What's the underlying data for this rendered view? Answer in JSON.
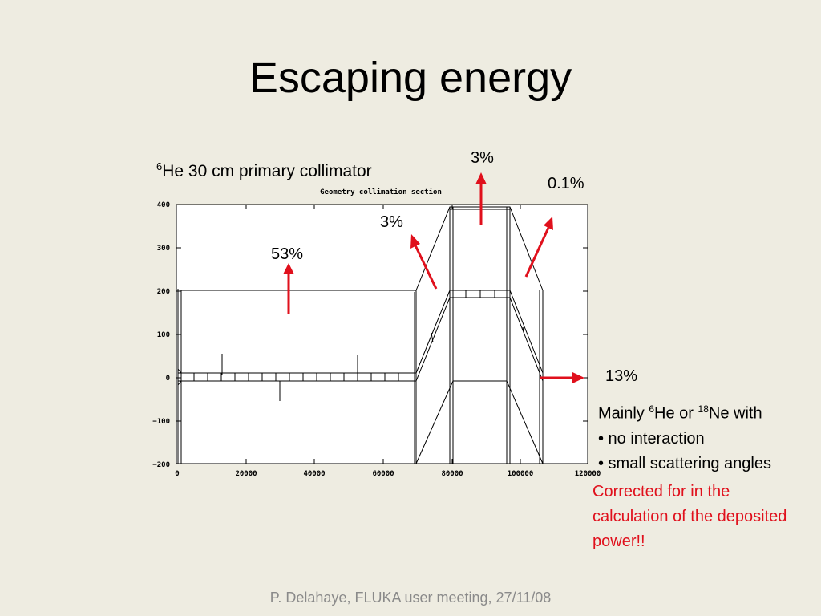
{
  "slide": {
    "title": "Escaping energy",
    "subtitle_sup": "6",
    "subtitle_text": "He 30 cm primary collimator",
    "footer": "P. Delahaye, FLUKA user meeting, 27/11/08"
  },
  "plot": {
    "title": "Geometry collimation section",
    "x_ticks": [
      "0",
      "20000",
      "40000",
      "60000",
      "80000",
      "100000",
      "120000"
    ],
    "y_ticks": [
      "400",
      "300",
      "200",
      "100",
      "0",
      "−100",
      "−200"
    ],
    "x_range": [
      0,
      120000
    ],
    "y_range": [
      -200,
      400
    ]
  },
  "annotations": {
    "pct_53": "53%",
    "pct_3a": "3%",
    "pct_3b": "3%",
    "pct_01": "0.1%",
    "pct_13": "13%",
    "arrow_color": "#e0101c"
  },
  "note": {
    "line1_pre": "Mainly ",
    "sup1": "6",
    "line1_mid": "He or ",
    "sup2": "18",
    "line1_post": "Ne with",
    "bullet1": "• no interaction",
    "bullet2": "• small scattering angles"
  },
  "corrected": "Corrected for in the calculation of the deposited power!!"
}
